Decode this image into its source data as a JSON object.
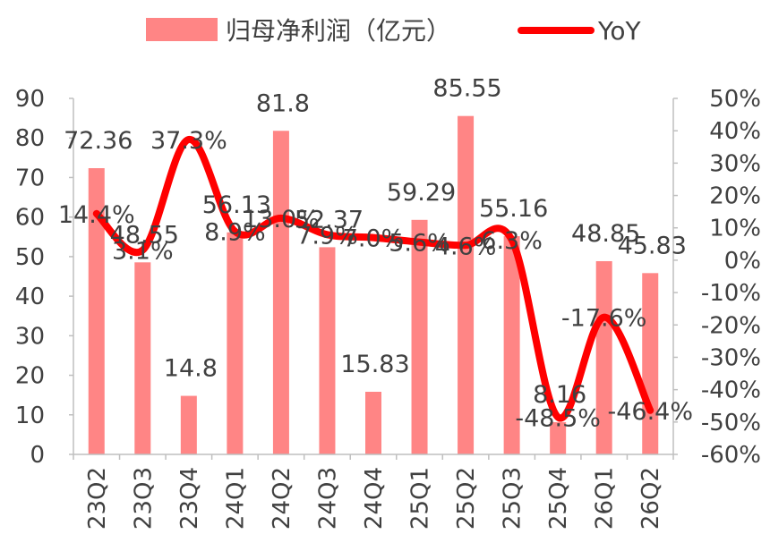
{
  "chart_data": {
    "type": "bar+line",
    "categories": [
      "23Q2",
      "23Q3",
      "23Q4",
      "24Q1",
      "24Q2",
      "24Q3",
      "24Q4",
      "25Q1",
      "25Q2",
      "25Q3",
      "25Q4",
      "26Q1",
      "26Q2"
    ],
    "series": [
      {
        "name": "归母净利润（亿元）",
        "type": "bar",
        "axis": "left",
        "color": "#ff8585",
        "values": [
          72.36,
          48.55,
          14.8,
          56.13,
          81.8,
          52.37,
          15.83,
          59.29,
          85.55,
          55.16,
          8.16,
          48.85,
          45.83
        ],
        "labels": [
          "72.36",
          "48.55",
          "14.8",
          "56.13",
          "81.8",
          "52.37",
          "15.83",
          "59.29",
          "85.55",
          "55.16",
          "8.16",
          "48.85",
          "45.83"
        ]
      },
      {
        "name": "YoY",
        "type": "line",
        "axis": "right",
        "color": "#ff0000",
        "values": [
          14.4,
          3.1,
          37.3,
          8.9,
          13.0,
          7.9,
          7.0,
          5.6,
          4.6,
          6.3,
          -48.5,
          -17.6,
          -46.4
        ],
        "labels": [
          "14.4%",
          "3.1%",
          "37.3%",
          "8.9%",
          "13.0%",
          "7.9%",
          "7.0%",
          "5.6%",
          "4.6%",
          "6.3%",
          "-48.5%",
          "-17.6%",
          "-46.4%"
        ]
      }
    ],
    "y_left": {
      "min": 0,
      "max": 90,
      "step": 10,
      "ticks": [
        "0",
        "10",
        "20",
        "30",
        "40",
        "50",
        "60",
        "70",
        "80",
        "90"
      ]
    },
    "y_right": {
      "min": -60,
      "max": 50,
      "step": 10,
      "ticks": [
        "-60%",
        "-50%",
        "-40%",
        "-30%",
        "-20%",
        "-10%",
        "0%",
        "10%",
        "20%",
        "30%",
        "40%",
        "50%"
      ]
    },
    "legend_position": "top",
    "grid": false
  }
}
